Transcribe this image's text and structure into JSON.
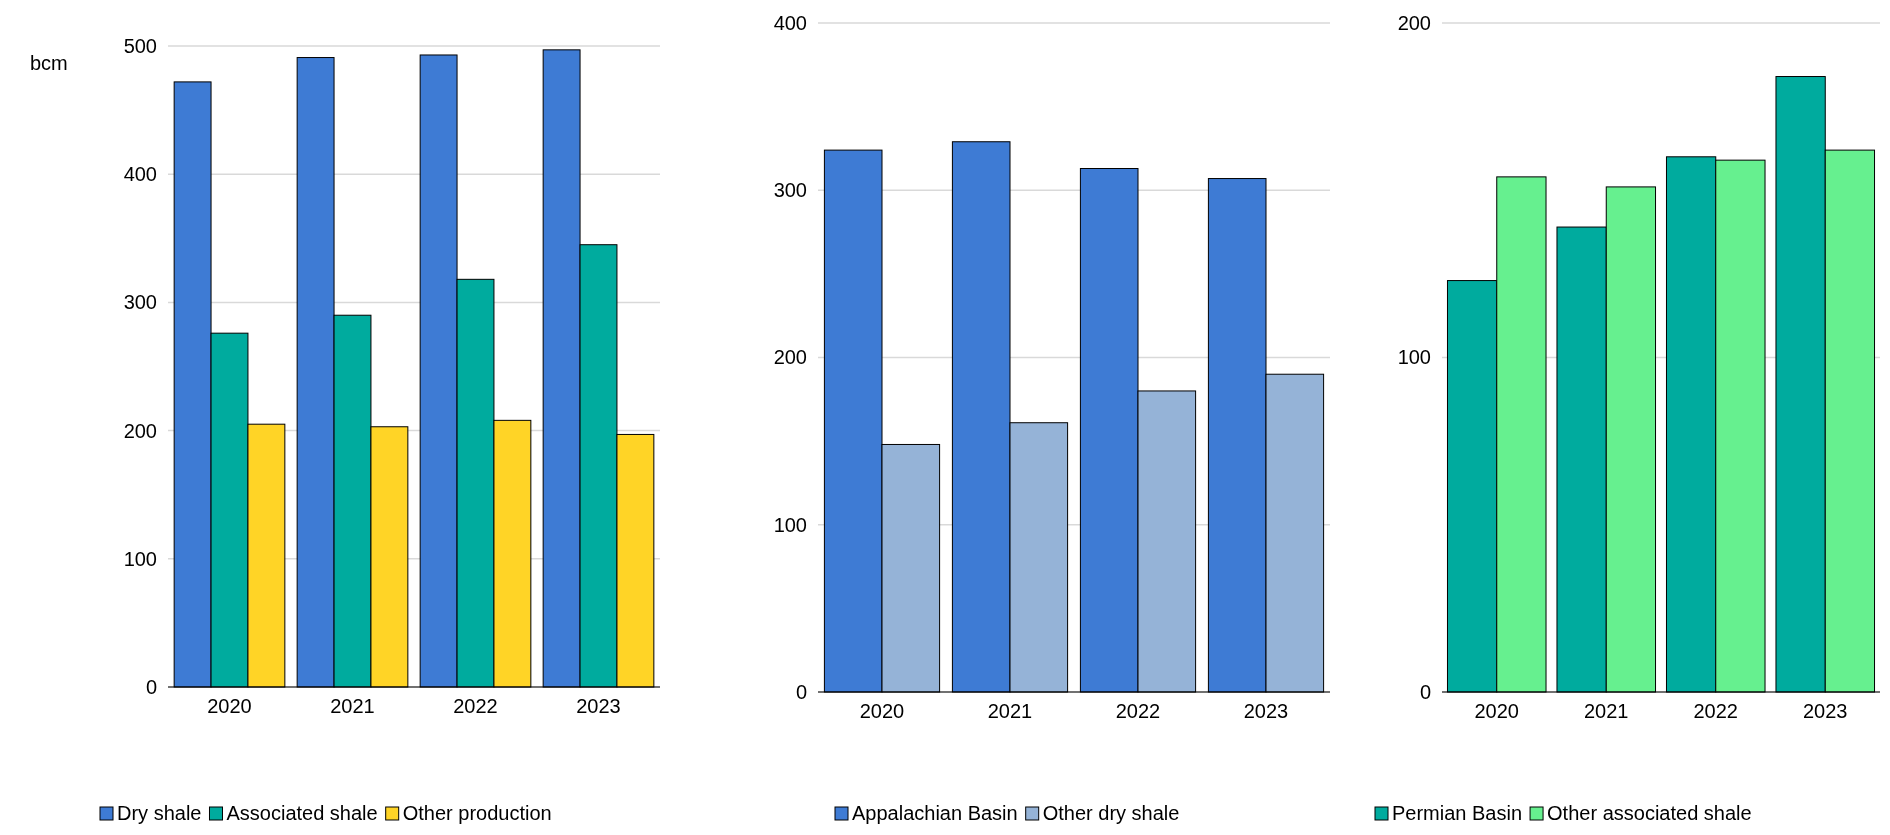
{
  "chart_data": [
    {
      "type": "bar",
      "ylabel": "bcm",
      "categories": [
        "2020",
        "2021",
        "2022",
        "2023"
      ],
      "series": [
        {
          "name": "Dry shale",
          "color": "#3e7bd4",
          "values": [
            472,
            491,
            493,
            497
          ]
        },
        {
          "name": "Associated shale",
          "color": "#00ab9e",
          "values": [
            276,
            290,
            318,
            345
          ]
        },
        {
          "name": "Other production",
          "color": "#ffd426",
          "values": [
            205,
            203,
            208,
            197
          ]
        }
      ],
      "ylim": [
        0,
        500
      ],
      "yticks": [
        0,
        100,
        200,
        300,
        400,
        500
      ],
      "grid": "y",
      "legend": "bottom"
    },
    {
      "type": "bar",
      "categories": [
        "2020",
        "2021",
        "2022",
        "2023"
      ],
      "series": [
        {
          "name": "Appalachian Basin",
          "color": "#3e7bd4",
          "values": [
            324,
            329,
            313,
            307
          ]
        },
        {
          "name": "Other dry shale",
          "color": "#95b3d7",
          "values": [
            148,
            161,
            180,
            190
          ]
        }
      ],
      "ylim": [
        0,
        400
      ],
      "yticks": [
        0,
        100,
        200,
        300,
        400
      ],
      "grid": "y",
      "legend": "bottom"
    },
    {
      "type": "bar",
      "categories": [
        "2020",
        "2021",
        "2022",
        "2023"
      ],
      "series": [
        {
          "name": "Permian Basin",
          "color": "#00ab9e",
          "values": [
            123,
            139,
            160,
            184
          ]
        },
        {
          "name": "Other associated shale",
          "color": "#66f08f",
          "values": [
            154,
            151,
            159,
            162
          ]
        }
      ],
      "ylim": [
        0,
        200
      ],
      "yticks": [
        0,
        100,
        200
      ],
      "grid": "y",
      "legend": "bottom"
    }
  ]
}
